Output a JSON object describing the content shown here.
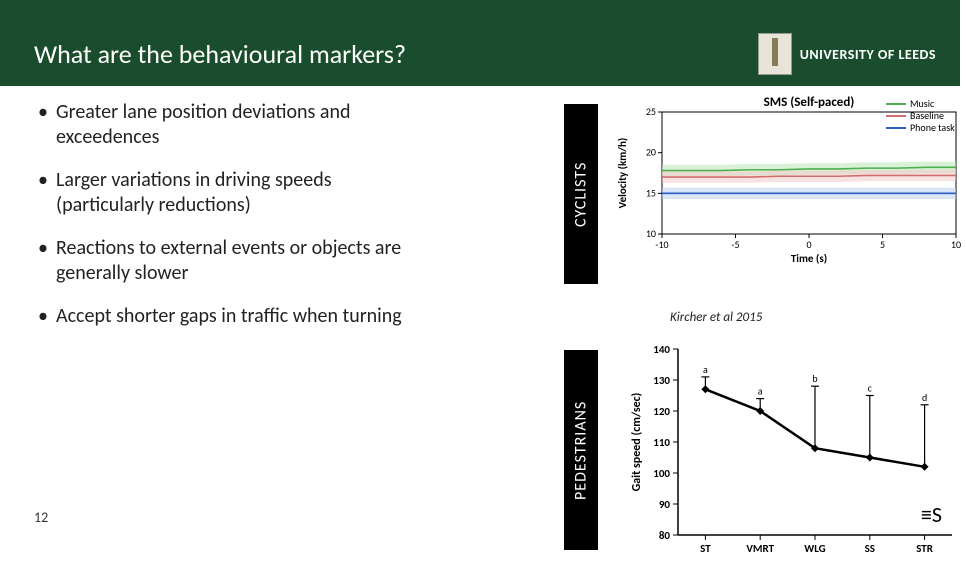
{
  "header": {
    "title": "What are the behavioural markers?",
    "university": "UNIVERSITY OF LEEDS"
  },
  "bullets": [
    "Greater lane position deviations and exceedences",
    "Larger variations in driving speeds (particularly reductions)",
    "Reactions to external events or objects are generally slower",
    "Accept shorter gaps in traffic when turning"
  ],
  "page_number": "12",
  "vlabels": {
    "top": "CYCLISTS",
    "bottom": "PEDESTRIANS"
  },
  "citation": "Kircher et al 2015",
  "chart_top": {
    "type": "line",
    "title_label": "SMS (Self-paced)",
    "ylabel": "Velocity (km/h)",
    "xlabel": "Time (s)",
    "xlim": [
      -10,
      10
    ],
    "ylim": [
      10,
      25
    ],
    "xticks": [
      -10,
      -5,
      0,
      5,
      10
    ],
    "yticks": [
      10,
      15,
      20,
      25
    ],
    "series": [
      {
        "name": "Music",
        "color": "#4caf50",
        "fill": "#b9e5b6",
        "y": [
          17.8,
          17.8,
          17.8,
          17.9,
          17.9,
          18.0,
          18.0,
          18.1,
          18.1,
          18.2,
          18.2
        ]
      },
      {
        "name": "Baseline",
        "color": "#d26d6d",
        "fill": "#f2c8c8",
        "y": [
          17.0,
          17.0,
          17.0,
          17.0,
          17.1,
          17.1,
          17.1,
          17.2,
          17.2,
          17.2,
          17.2
        ]
      },
      {
        "name": "Phone task",
        "color": "#2b5ec4",
        "fill": "#bcd0f2",
        "y": [
          15.0,
          15.0,
          15.0,
          15.0,
          15.0,
          15.0,
          15.0,
          15.0,
          15.0,
          15.0,
          15.0
        ]
      }
    ],
    "legend_pos": "top-right",
    "background": "#ffffff",
    "grid_color": "#dddddd",
    "title_fontsize": 13,
    "label_fontsize": 11,
    "line_width": 1.6,
    "band_opacity": 0.55
  },
  "chart_bottom": {
    "type": "line-errorbar",
    "ylabel": "Gait speed (cm/sec)",
    "xlabel": "",
    "categories": [
      "ST",
      "VMRT",
      "WLG",
      "SS",
      "STR"
    ],
    "group_letters": [
      "a",
      "a",
      "b",
      "c",
      "d"
    ],
    "values": [
      127,
      120,
      108,
      105,
      102
    ],
    "err_up": [
      4,
      4,
      20,
      20,
      20
    ],
    "err_dn": [
      0,
      0,
      0,
      0,
      0
    ],
    "ylim": [
      80,
      140
    ],
    "ytick_step": 10,
    "marker": "diamond",
    "marker_size": 8,
    "line_color": "#000000",
    "line_width": 2.5,
    "background": "#ffffff",
    "axis_color": "#000000",
    "font_weight": "700"
  },
  "corner_icon": "≡S"
}
